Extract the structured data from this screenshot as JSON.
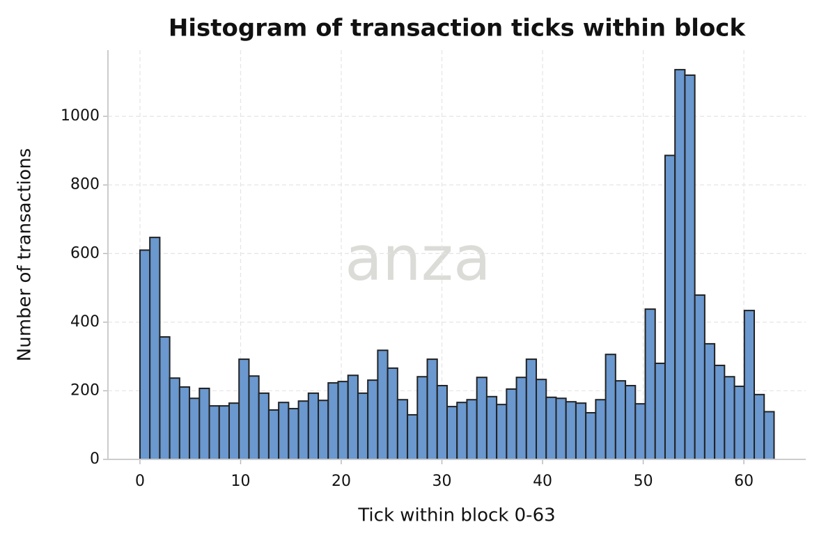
{
  "chart_data": {
    "type": "histogram",
    "title": "Histogram of transaction ticks within block",
    "xlabel": "Tick within block 0-63",
    "ylabel": "Number of transactions",
    "watermark": "anza",
    "bins": [
      0,
      0.984375,
      1.96875,
      2.953125,
      3.9375,
      4.921875,
      5.90625,
      6.890625,
      7.875,
      8.859375,
      9.84375,
      10.828125,
      11.8125,
      12.796875,
      13.78125,
      14.765625,
      15.75,
      16.734375,
      17.71875,
      18.703125,
      19.6875,
      20.671875,
      21.65625,
      22.640625,
      23.625,
      24.609375,
      25.59375,
      26.578125,
      27.5625,
      28.546875,
      29.53125,
      30.515625,
      31.5,
      32.484375,
      33.46875,
      34.453125,
      35.4375,
      36.421875,
      37.40625,
      38.390625,
      39.375,
      40.359375,
      41.34375,
      42.328125,
      43.3125,
      44.296875,
      45.28125,
      46.265625,
      47.25,
      48.234375,
      49.21875,
      50.203125,
      51.1875,
      52.171875,
      53.15625,
      54.140625,
      55.125,
      56.109375,
      57.09375,
      58.078125,
      59.0625,
      60.046875,
      61.03125,
      62.015625,
      63
    ],
    "values": [
      610,
      647,
      357,
      237,
      211,
      178,
      207,
      156,
      156,
      164,
      292,
      243,
      193,
      144,
      166,
      148,
      170,
      193,
      172,
      223,
      227,
      245,
      193,
      231,
      318,
      266,
      174,
      130,
      241,
      292,
      215,
      154,
      166,
      174,
      239,
      183,
      160,
      205,
      239,
      292,
      233,
      181,
      178,
      168,
      164,
      136,
      174,
      306,
      229,
      215,
      162,
      438,
      280,
      886,
      1136,
      1120,
      479,
      337,
      274,
      241,
      213,
      434,
      189,
      139
    ],
    "color": "#6a98cf",
    "edgecolor": "#222222",
    "xlim": [
      -3.18,
      66.15
    ],
    "ylim": [
      0,
      1193
    ],
    "xticks": [
      0,
      10,
      20,
      30,
      40,
      50,
      60
    ],
    "yticks": [
      0,
      200,
      400,
      600,
      800,
      1000
    ],
    "grid": true
  }
}
